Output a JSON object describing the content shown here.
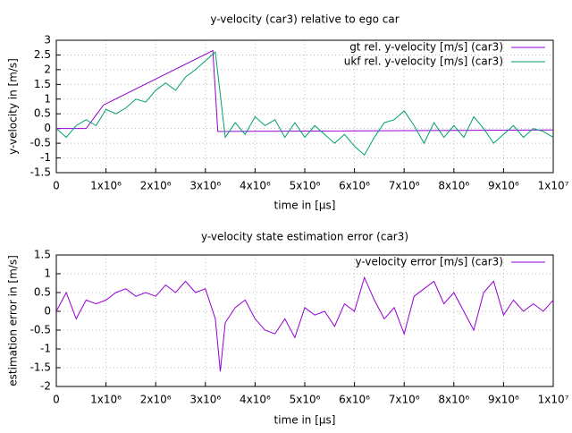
{
  "chart_data": [
    {
      "type": "line",
      "title": "y-velocity (car3) relative to ego car",
      "xlabel": "time in [µs]",
      "ylabel": "y-velocity in [m/s]",
      "xlim": [
        0,
        10000000
      ],
      "ylim": [
        -1.5,
        3
      ],
      "xticks": [
        0,
        {
          "value": 1000000,
          "label": "1x10⁶"
        },
        {
          "value": 2000000,
          "label": "2x10⁶"
        },
        {
          "value": 3000000,
          "label": "3x10⁶"
        },
        {
          "value": 4000000,
          "label": "4x10⁶"
        },
        {
          "value": 5000000,
          "label": "5x10⁶"
        },
        {
          "value": 6000000,
          "label": "6x10⁶"
        },
        {
          "value": 7000000,
          "label": "7x10⁶"
        },
        {
          "value": 8000000,
          "label": "8x10⁶"
        },
        {
          "value": 9000000,
          "label": "9x10⁶"
        },
        {
          "value": 10000000,
          "label": "1x10⁷"
        }
      ],
      "yticks": [
        -1.5,
        -1,
        -0.5,
        0,
        0.5,
        1,
        1.5,
        2,
        2.5,
        3
      ],
      "grid": true,
      "legend": "top-right",
      "series": [
        {
          "name": "gt rel. y-velocity [m/s] (car3)",
          "color": "#9400d3",
          "x": [
            0,
            600000,
            950000,
            3150000,
            3250000,
            10000000
          ],
          "values": [
            0,
            0,
            0.8,
            2.65,
            -0.1,
            -0.05
          ]
        },
        {
          "name": "ukf rel. y-velocity [m/s] (car3)",
          "color": "#009e73",
          "x": [
            0,
            200000,
            400000,
            600000,
            800000,
            1000000,
            1200000,
            1400000,
            1600000,
            1800000,
            2000000,
            2200000,
            2400000,
            2600000,
            2800000,
            3000000,
            3200000,
            3400000,
            3600000,
            3800000,
            4000000,
            4200000,
            4400000,
            4600000,
            4800000,
            5000000,
            5200000,
            5400000,
            5600000,
            5800000,
            6000000,
            6200000,
            6400000,
            6600000,
            6800000,
            7000000,
            7200000,
            7400000,
            7600000,
            7800000,
            8000000,
            8200000,
            8400000,
            8600000,
            8800000,
            9000000,
            9200000,
            9400000,
            9600000,
            9800000,
            10000000
          ],
          "values": [
            0,
            -0.3,
            0.1,
            0.3,
            0.1,
            0.65,
            0.5,
            0.7,
            1.0,
            0.9,
            1.3,
            1.55,
            1.3,
            1.75,
            2.0,
            2.3,
            2.6,
            -0.3,
            0.2,
            -0.2,
            0.4,
            0.1,
            0.3,
            -0.3,
            0.2,
            -0.3,
            0.1,
            -0.2,
            -0.5,
            -0.2,
            -0.6,
            -0.9,
            -0.3,
            0.2,
            0.3,
            0.6,
            0.1,
            -0.5,
            0.2,
            -0.3,
            0.1,
            -0.3,
            0.4,
            0.0,
            -0.5,
            -0.2,
            0.1,
            -0.3,
            0.0,
            -0.1,
            -0.3
          ]
        }
      ]
    },
    {
      "type": "line",
      "title": "y-velocity state estimation error (car3)",
      "xlabel": "time in [µs]",
      "ylabel": "estimation error in [m/s]",
      "xlim": [
        0,
        10000000
      ],
      "ylim": [
        -2,
        1.5
      ],
      "xticks": [
        0,
        {
          "value": 1000000,
          "label": "1x10⁶"
        },
        {
          "value": 2000000,
          "label": "2x10⁶"
        },
        {
          "value": 3000000,
          "label": "3x10⁶"
        },
        {
          "value": 4000000,
          "label": "4x10⁶"
        },
        {
          "value": 5000000,
          "label": "5x10⁶"
        },
        {
          "value": 6000000,
          "label": "6x10⁶"
        },
        {
          "value": 7000000,
          "label": "7x10⁶"
        },
        {
          "value": 8000000,
          "label": "8x10⁶"
        },
        {
          "value": 9000000,
          "label": "9x10⁶"
        },
        {
          "value": 10000000,
          "label": "1x10⁷"
        }
      ],
      "yticks": [
        -2,
        -1.5,
        -1,
        -0.5,
        0,
        0.5,
        1,
        1.5
      ],
      "grid": true,
      "legend": "top-right",
      "series": [
        {
          "name": "y-velocity error [m/s] (car3)",
          "color": "#9400d3",
          "x": [
            0,
            200000,
            400000,
            600000,
            800000,
            1000000,
            1200000,
            1400000,
            1600000,
            1800000,
            2000000,
            2200000,
            2400000,
            2600000,
            2800000,
            3000000,
            3200000,
            3300000,
            3400000,
            3600000,
            3800000,
            4000000,
            4200000,
            4400000,
            4600000,
            4800000,
            5000000,
            5200000,
            5400000,
            5600000,
            5800000,
            6000000,
            6200000,
            6400000,
            6600000,
            6800000,
            7000000,
            7200000,
            7400000,
            7600000,
            7800000,
            8000000,
            8200000,
            8400000,
            8600000,
            8800000,
            9000000,
            9200000,
            9400000,
            9600000,
            9800000,
            10000000
          ],
          "values": [
            0,
            0.5,
            -0.2,
            0.3,
            0.2,
            0.3,
            0.5,
            0.6,
            0.4,
            0.5,
            0.4,
            0.7,
            0.5,
            0.8,
            0.5,
            0.6,
            -0.2,
            -1.6,
            -0.3,
            0.1,
            0.3,
            -0.2,
            -0.5,
            -0.6,
            -0.2,
            -0.7,
            0.1,
            -0.1,
            0.0,
            -0.4,
            0.2,
            0.0,
            0.9,
            0.3,
            -0.2,
            0.1,
            -0.6,
            0.4,
            0.6,
            0.8,
            0.2,
            0.5,
            0.0,
            -0.5,
            0.5,
            0.8,
            -0.1,
            0.3,
            0.0,
            0.2,
            0.0,
            0.3
          ]
        }
      ]
    }
  ]
}
